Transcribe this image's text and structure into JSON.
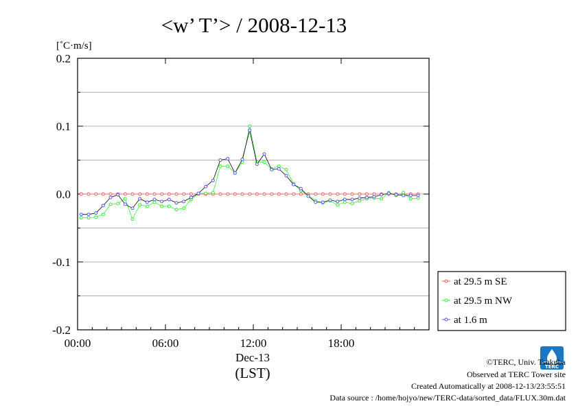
{
  "chart_data": {
    "type": "line",
    "title": "<w’ T’> / 2008-12-13",
    "ylabel": "[˚C·m/s]",
    "xlabel_lines": [
      "Dec-13",
      "(LST)"
    ],
    "x_tick_labels": [
      "00:00",
      "06:00",
      "12:00",
      "18:00"
    ],
    "x_ticks_hours": [
      0,
      6,
      12,
      18
    ],
    "xlim_hours": [
      0,
      24
    ],
    "y_tick_labels": [
      "0.2",
      "0.1",
      "0.0",
      "-0.1",
      "-0.2"
    ],
    "y_ticks": [
      0.2,
      0.1,
      0.0,
      -0.1,
      -0.2
    ],
    "ylim": [
      -0.2,
      0.2
    ],
    "grid": "horizontal",
    "legend_position": "bottom-right-outside",
    "x_hours": [
      0.25,
      0.75,
      1.25,
      1.75,
      2.25,
      2.75,
      3.25,
      3.75,
      4.25,
      4.75,
      5.25,
      5.75,
      6.25,
      6.75,
      7.25,
      7.75,
      8.25,
      8.75,
      9.25,
      9.75,
      10.25,
      10.75,
      11.25,
      11.75,
      12.25,
      12.75,
      13.25,
      13.75,
      14.25,
      14.75,
      15.25,
      15.75,
      16.25,
      16.75,
      17.25,
      17.75,
      18.25,
      18.75,
      19.25,
      19.75,
      20.25,
      20.75,
      21.25,
      21.75,
      22.25,
      22.75,
      23.25
    ],
    "series": [
      {
        "name": "at 29.5 m SE",
        "color": "#ff5555",
        "values": [
          0,
          0,
          0,
          0,
          0,
          0,
          0,
          0,
          0,
          0,
          0,
          0,
          0,
          0,
          0,
          0,
          0,
          0,
          0,
          0,
          0,
          0,
          0,
          0,
          0,
          0,
          0,
          0,
          0,
          0,
          0,
          0,
          0,
          0,
          0,
          0,
          0,
          0,
          0,
          0,
          0,
          0,
          0,
          0,
          0,
          0,
          0
        ]
      },
      {
        "name": "at 29.5 m NW",
        "color": "#33ee33",
        "values": [
          -0.035,
          -0.035,
          -0.034,
          -0.03,
          -0.015,
          -0.014,
          -0.007,
          -0.037,
          -0.016,
          -0.018,
          -0.012,
          -0.018,
          -0.018,
          -0.023,
          -0.021,
          -0.008,
          0.001,
          0.001,
          0.002,
          0.041,
          0.041,
          0.031,
          0.047,
          0.1,
          0.047,
          0.047,
          0.037,
          0.041,
          0.036,
          0.015,
          0.005,
          -0.002,
          -0.01,
          -0.013,
          -0.01,
          -0.016,
          -0.012,
          -0.014,
          -0.01,
          -0.007,
          -0.006,
          -0.007,
          0.002,
          -0.002,
          0.002,
          -0.007,
          -0.006
        ]
      },
      {
        "name": "at 1.6 m",
        "color": "#5555ff",
        "values": [
          -0.03,
          -0.03,
          -0.028,
          -0.017,
          -0.005,
          -0.001,
          -0.015,
          -0.021,
          -0.007,
          -0.012,
          -0.008,
          -0.011,
          -0.008,
          -0.013,
          -0.011,
          -0.005,
          0.001,
          0.011,
          0.02,
          0.05,
          0.052,
          0.031,
          0.051,
          0.094,
          0.044,
          0.059,
          0.036,
          0.037,
          0.027,
          0.014,
          0.008,
          -0.003,
          -0.012,
          -0.012,
          -0.009,
          -0.011,
          -0.008,
          -0.008,
          -0.006,
          -0.005,
          -0.004,
          -0.001,
          0.001,
          -0.001,
          -0.002,
          -0.002,
          -0.002
        ]
      }
    ]
  },
  "footer": {
    "copyright": "©TERC, Univ. Tsukuba",
    "observed": "Observed at TERC Tower site",
    "created": "Created Automatically at 2008-12-13/23:55:51",
    "source": "Data source : /home/hojyo/new/TERC-data/sorted_data/FLUX.30m.dat"
  },
  "logo": {
    "text": "TERC",
    "color": "#1a78c2"
  }
}
